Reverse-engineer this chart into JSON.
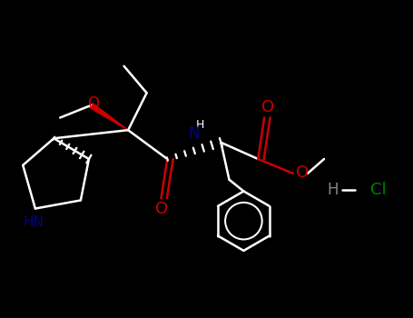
{
  "bg_color": "#000000",
  "bond_color": "#ffffff",
  "O_color": "#cc0000",
  "N_color": "#00008b",
  "Cl_color": "#008000",
  "H_color": "#888888",
  "lw": 1.8,
  "figsize": [
    4.55,
    3.5
  ],
  "dpi": 100,
  "xlim": [
    0,
    10
  ],
  "ylim": [
    0,
    7.7
  ]
}
